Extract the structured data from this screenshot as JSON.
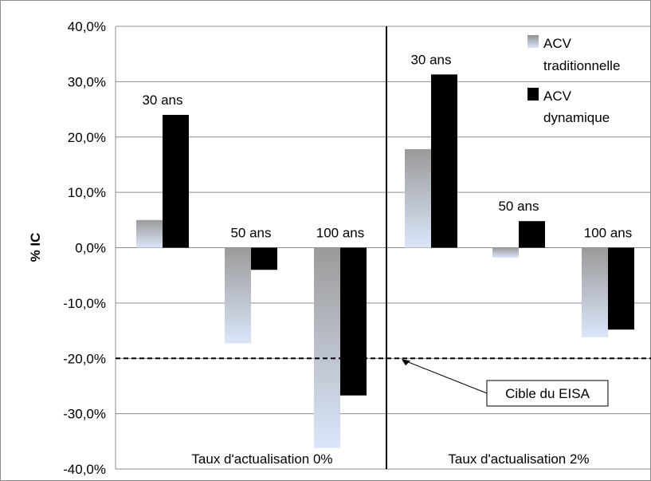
{
  "chart_data": {
    "type": "bar",
    "ylabel": "% IC",
    "ylim": [
      -40,
      40
    ],
    "yticks": [
      40,
      30,
      20,
      10,
      0,
      -10,
      -20,
      -30,
      -40
    ],
    "ytick_labels": [
      "40,0%",
      "30,0%",
      "20,0%",
      "10,0%",
      "0,0%",
      "-10,0%",
      "-20,0%",
      "-30,0%",
      "-40,0%"
    ],
    "grid": true,
    "legend_position": "top-right",
    "series": [
      {
        "name": "ACV traditionnelle",
        "name_lines": [
          "ACV",
          "traditionnelle"
        ],
        "color": "gradient-grey-to-lightblue"
      },
      {
        "name": "ACV dynamique",
        "name_lines": [
          "ACV",
          "dynamique"
        ],
        "color": "#000000"
      }
    ],
    "groups": [
      {
        "label": "Taux d'actualisation 0%",
        "categories": [
          {
            "label": "30 ans",
            "values": [
              5.0,
              24.0
            ]
          },
          {
            "label": "50 ans",
            "values": [
              -17.3,
              -4.0
            ]
          },
          {
            "label": "100 ans",
            "values": [
              -36.2,
              -26.7
            ]
          }
        ]
      },
      {
        "label": "Taux d'actualisation 2%",
        "categories": [
          {
            "label": "30 ans",
            "values": [
              17.8,
              31.3
            ]
          },
          {
            "label": "50 ans",
            "values": [
              -1.8,
              4.8
            ]
          },
          {
            "label": "100 ans",
            "values": [
              -16.2,
              -14.8
            ]
          }
        ]
      }
    ],
    "reference_line": {
      "value": -20,
      "label": "Cible du EISA",
      "style": "dashed"
    }
  }
}
